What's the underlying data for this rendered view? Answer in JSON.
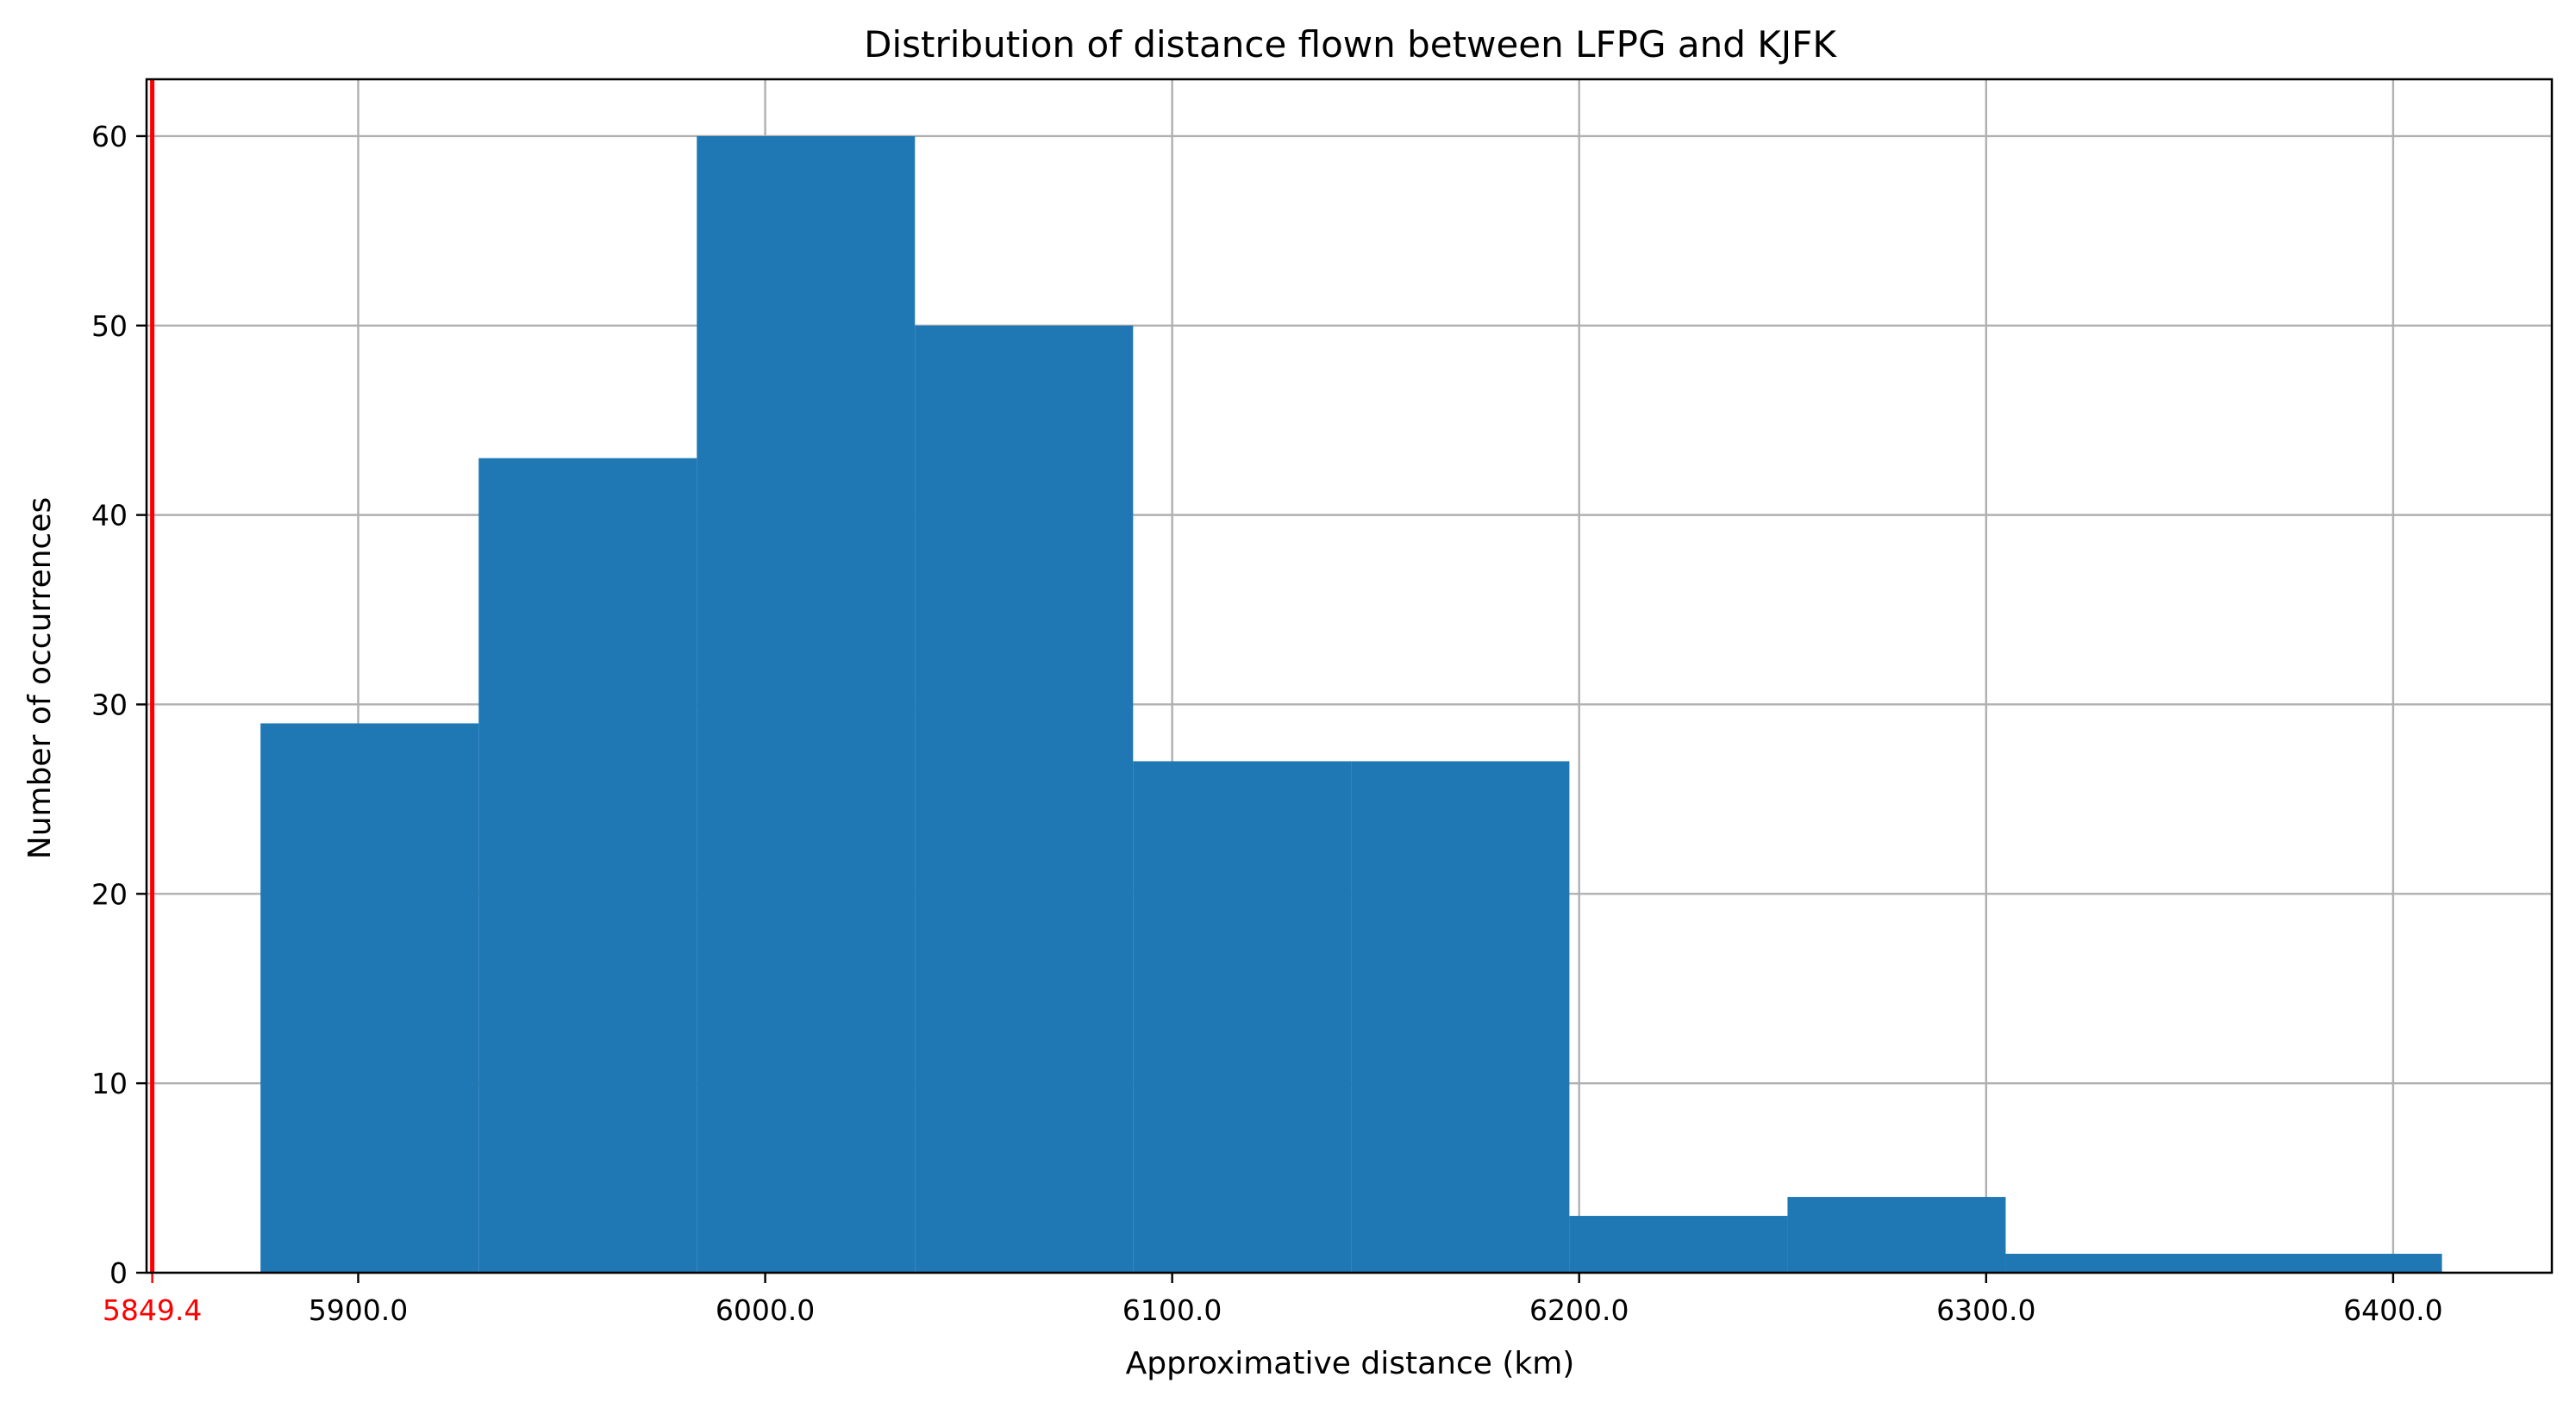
{
  "chart_data": {
    "type": "bar",
    "title": "Distribution of distance flown between LFPG and KJFK",
    "xlabel": "Approximative distance (km)",
    "ylabel": "Number of occurrences",
    "bins": [
      {
        "start": 5876.0,
        "end": 5929.6,
        "count": 29
      },
      {
        "start": 5929.6,
        "end": 5983.2,
        "count": 43
      },
      {
        "start": 5983.2,
        "end": 6036.8,
        "count": 60
      },
      {
        "start": 6036.8,
        "end": 6090.4,
        "count": 50
      },
      {
        "start": 6090.4,
        "end": 6144.0,
        "count": 27
      },
      {
        "start": 6144.0,
        "end": 6197.6,
        "count": 27
      },
      {
        "start": 6197.6,
        "end": 6251.2,
        "count": 3
      },
      {
        "start": 6251.2,
        "end": 6304.8,
        "count": 4
      },
      {
        "start": 6304.8,
        "end": 6358.4,
        "count": 1
      },
      {
        "start": 6358.4,
        "end": 6412.0,
        "count": 1
      }
    ],
    "xlim": [
      5848,
      6439
    ],
    "ylim": [
      0,
      63
    ],
    "x_ticks": [
      "5900.0",
      "6000.0",
      "6100.0",
      "6200.0",
      "6300.0",
      "6400.0"
    ],
    "y_ticks": [
      "0",
      "10",
      "20",
      "30",
      "40",
      "50",
      "60"
    ],
    "grid": true,
    "reference_line": {
      "value": 5849.4,
      "label": "5849.4",
      "color": "#ff0000"
    },
    "bar_color": "#1f77b4"
  }
}
